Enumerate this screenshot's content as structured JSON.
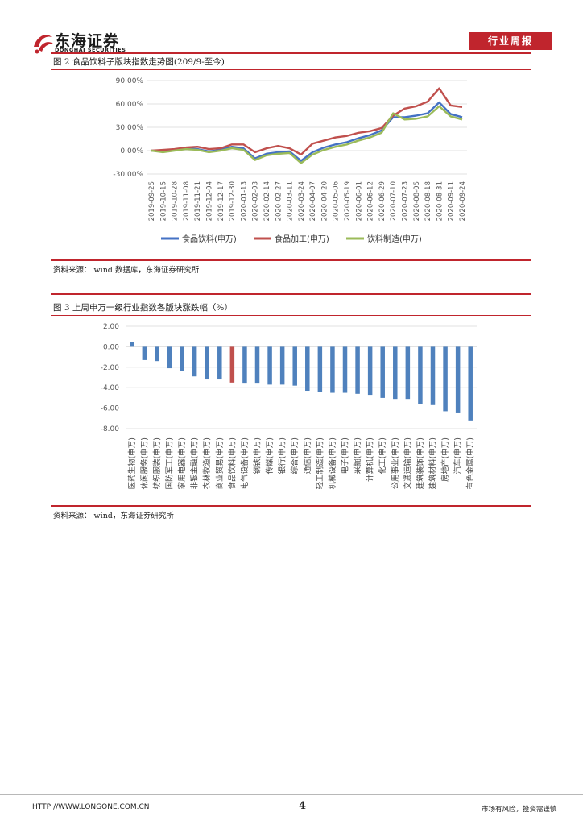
{
  "header": {
    "company_cn": "东海证券",
    "company_en": "DONGHAI SECURITIES",
    "report_type": "行业周报"
  },
  "figure2": {
    "title": "图 2   食品饮料子版块指数走势图(209/9-至今)",
    "source": "资料来源：   wind 数据库，东海证券研究所"
  },
  "figure3": {
    "title": "图 3   上周申万一级行业指数各版块涨跌幅（%）",
    "source": "资料来源：   wind，东海证券研究所"
  },
  "footer": {
    "url": "HTTP://WWW.LONGONE.COM.CN",
    "page": "4",
    "disclaimer": "市场有风险，投资需谨慎"
  },
  "chart_data": [
    {
      "type": "line",
      "ylim": [
        -30,
        90
      ],
      "y_ticks": [
        "90.00%",
        "60.00%",
        "30.00%",
        "0.00%",
        "-30.00%"
      ],
      "y_tick_values": [
        90,
        60,
        30,
        0,
        -30
      ],
      "x": [
        "2019-09-25",
        "2019-10-15",
        "2019-10-28",
        "2019-11-08",
        "2019-11-21",
        "2019-12-04",
        "2019-12-17",
        "2019-12-30",
        "2020-01-13",
        "2020-02-03",
        "2020-02-14",
        "2020-02-27",
        "2020-03-11",
        "2020-03-24",
        "2020-04-07",
        "2020-04-20",
        "2020-05-06",
        "2020-05-19",
        "2020-06-01",
        "2020-06-12",
        "2020-06-29",
        "2020-07-10",
        "2020-07-23",
        "2020-08-05",
        "2020-08-18",
        "2020-08-31",
        "2020-09-11",
        "2020-09-24"
      ],
      "legend_position": "bottom",
      "series": [
        {
          "name": "食品饮料(申万)",
          "color": "#4472c4",
          "values": [
            0,
            -1,
            1,
            3,
            2,
            -1,
            1,
            5,
            3,
            -10,
            -4,
            -2,
            -1,
            -13,
            -2,
            4,
            8,
            11,
            16,
            20,
            26,
            43,
            43,
            45,
            48,
            62,
            47,
            43
          ]
        },
        {
          "name": "食品加工(申万)",
          "color": "#c0504d",
          "values": [
            0,
            1,
            2,
            4,
            5,
            2,
            3,
            8,
            8,
            -2,
            3,
            6,
            3,
            -5,
            9,
            13,
            17,
            19,
            23,
            25,
            29,
            45,
            54,
            57,
            63,
            80,
            58,
            56
          ]
        },
        {
          "name": "饮料制造(申万)",
          "color": "#9bbb59",
          "values": [
            0,
            -2,
            0,
            2,
            1,
            -2,
            0,
            3,
            1,
            -12,
            -6,
            -4,
            -3,
            -16,
            -5,
            1,
            5,
            8,
            13,
            17,
            23,
            48,
            40,
            41,
            44,
            57,
            44,
            40
          ]
        }
      ]
    },
    {
      "type": "bar",
      "ylim": [
        -8,
        2
      ],
      "y_ticks": [
        "2.00",
        "0.00",
        "-2.00",
        "-4.00",
        "-6.00",
        "-8.00"
      ],
      "y_tick_values": [
        2,
        0,
        -2,
        -4,
        -6,
        -8
      ],
      "highlight_color": "#c0504d",
      "bar_color": "#4f81bd",
      "highlight_category": "食品饮料(申万)",
      "categories": [
        "医药生物(申万)",
        "休闲服务(申万)",
        "纺织服装(申万)",
        "国防军工(申万)",
        "家用电器(申万)",
        "非银金融(申万)",
        "农林牧渔(申万)",
        "商业贸易(申万)",
        "食品饮料(申万)",
        "电气设备(申万)",
        "钢铁(申万)",
        "传媒(申万)",
        "银行(申万)",
        "综合(申万)",
        "通信(申万)",
        "轻工制造(申万)",
        "机械设备(申万)",
        "电子(申万)",
        "采掘(申万)",
        "计算机(申万)",
        "化工(申万)",
        "公用事业(申万)",
        "交通运输(申万)",
        "建筑装饰(申万)",
        "建筑材料(申万)",
        "房地产(申万)",
        "汽车(申万)",
        "有色金属(申万)"
      ],
      "values": [
        0.5,
        -1.3,
        -1.4,
        -2.1,
        -2.4,
        -2.9,
        -3.2,
        -3.2,
        -3.5,
        -3.6,
        -3.6,
        -3.7,
        -3.7,
        -3.8,
        -4.3,
        -4.4,
        -4.5,
        -4.5,
        -4.6,
        -4.7,
        -5.0,
        -5.1,
        -5.1,
        -5.6,
        -5.7,
        -6.3,
        -6.5,
        -7.2
      ]
    }
  ]
}
